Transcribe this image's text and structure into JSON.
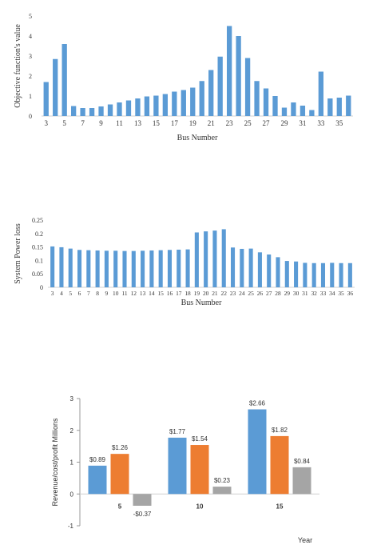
{
  "chart_data": [
    {
      "type": "bar",
      "title": "",
      "xlabel": "Bus Number",
      "ylabel": "Objective function's value",
      "ylim": [
        0,
        5
      ],
      "yticks": [
        "0",
        "1",
        "2",
        "3",
        "4",
        "5"
      ],
      "xticks": [
        "3",
        "5",
        "7",
        "9",
        "11",
        "13",
        "15",
        "17",
        "19",
        "21",
        "23",
        "25",
        "27",
        "29",
        "31",
        "33",
        "35"
      ],
      "categories": [
        "3",
        "4",
        "5",
        "6",
        "7",
        "8",
        "9",
        "10",
        "11",
        "12",
        "13",
        "14",
        "15",
        "16",
        "17",
        "18",
        "19",
        "20",
        "21",
        "22",
        "23",
        "24",
        "25",
        "26",
        "27",
        "28",
        "29",
        "30",
        "31",
        "32",
        "33",
        "34",
        "35",
        "36"
      ],
      "values": [
        1.7,
        2.85,
        3.6,
        0.5,
        0.4,
        0.4,
        0.48,
        0.58,
        0.68,
        0.78,
        0.88,
        0.98,
        1.02,
        1.1,
        1.22,
        1.3,
        1.42,
        1.75,
        2.3,
        2.97,
        4.5,
        4.0,
        2.9,
        1.75,
        1.38,
        1.0,
        0.42,
        0.68,
        0.52,
        0.3,
        2.22,
        0.88,
        0.92,
        1.02
      ],
      "bar_color": "#5b9bd5",
      "grid": false
    },
    {
      "type": "bar",
      "title": "",
      "xlabel": "Bus Number",
      "ylabel": "System Power loss",
      "ylim": [
        0,
        0.25
      ],
      "yticks": [
        "0",
        "0.05",
        "0.1",
        "0.15",
        "0.2",
        "0.25"
      ],
      "categories": [
        "3",
        "4",
        "5",
        "6",
        "7",
        "8",
        "9",
        "10",
        "11",
        "12",
        "13",
        "14",
        "15",
        "16",
        "17",
        "18",
        "19",
        "20",
        "21",
        "22",
        "23",
        "24",
        "25",
        "26",
        "27",
        "28",
        "29",
        "30",
        "31",
        "32",
        "33",
        "34",
        "35",
        "36"
      ],
      "values": [
        0.152,
        0.149,
        0.144,
        0.139,
        0.138,
        0.137,
        0.136,
        0.136,
        0.135,
        0.135,
        0.136,
        0.137,
        0.138,
        0.139,
        0.14,
        0.141,
        0.204,
        0.208,
        0.211,
        0.216,
        0.148,
        0.143,
        0.144,
        0.13,
        0.122,
        0.112,
        0.098,
        0.096,
        0.091,
        0.09,
        0.09,
        0.091,
        0.09,
        0.09
      ],
      "bar_color": "#5b9bd5",
      "grid": false
    },
    {
      "type": "bar",
      "title": "",
      "xlabel": "Year",
      "ylabel": "Revenue/cost/profit Millions",
      "ylim": [
        -1,
        3
      ],
      "yticks": [
        "-1",
        "0",
        "1",
        "2",
        "3"
      ],
      "categories": [
        "5",
        "10",
        "15"
      ],
      "series": [
        {
          "values": [
            0.89,
            1.77,
            2.66
          ],
          "labels": [
            "$0.89",
            "$1.77",
            "$2.66"
          ],
          "color": "#5b9bd5"
        },
        {
          "values": [
            1.26,
            1.54,
            1.82
          ],
          "labels": [
            "$1.26",
            "$1.54",
            "$1.82"
          ],
          "color": "#ed7d31"
        },
        {
          "values": [
            -0.37,
            0.23,
            0.84
          ],
          "labels": [
            "-$0.37",
            "$0.23",
            "$0.84"
          ],
          "color": "#a5a5a5"
        }
      ],
      "grid": false
    }
  ]
}
